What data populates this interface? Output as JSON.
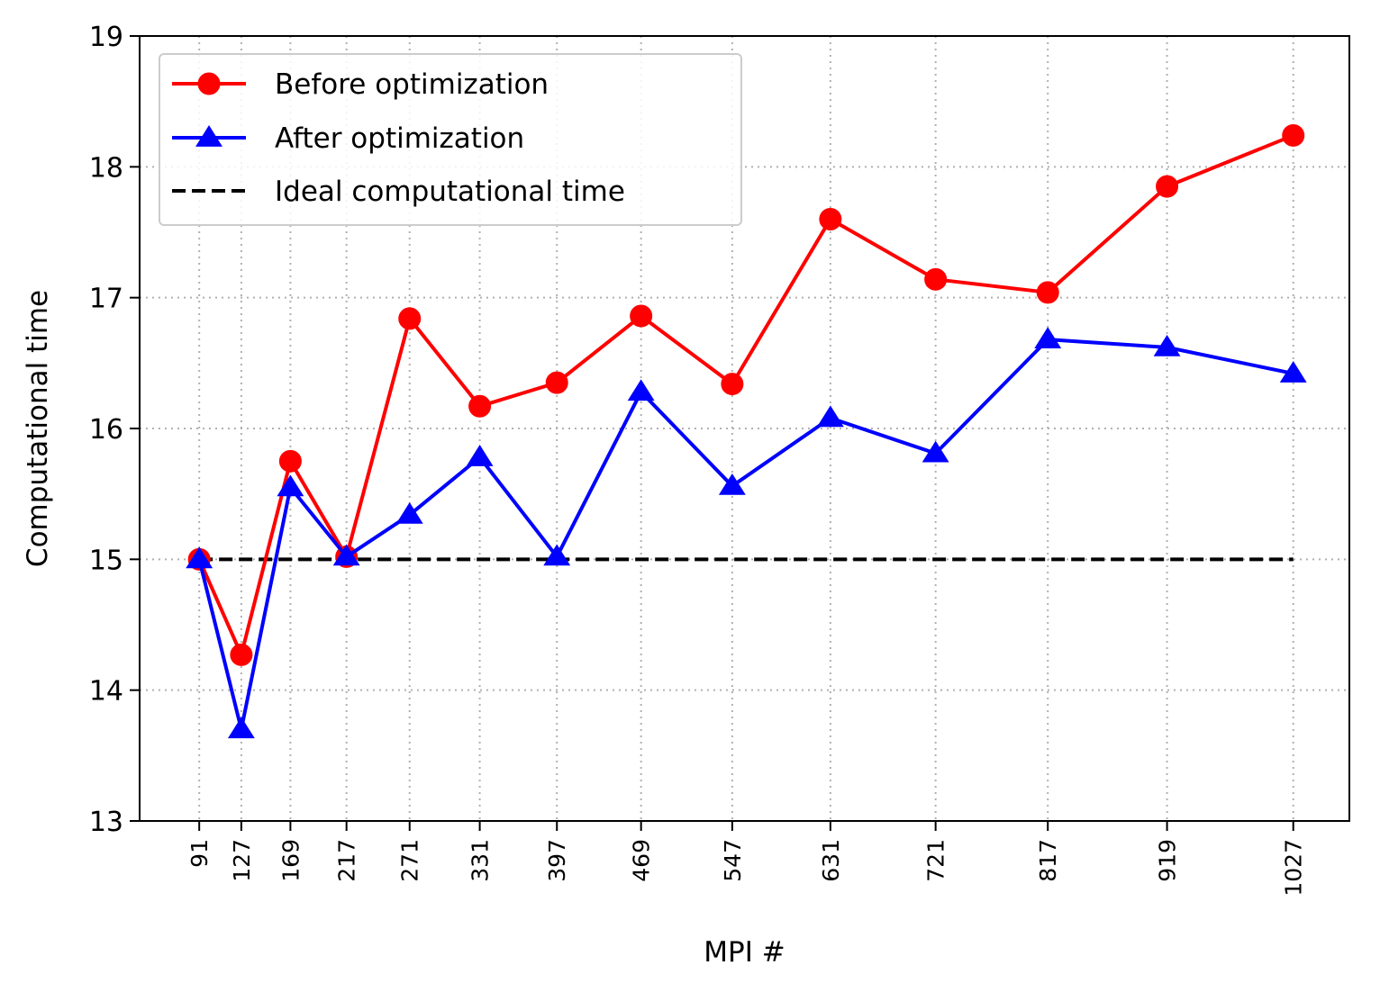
{
  "chart_data": {
    "type": "line",
    "title": "",
    "xlabel": "MPI #",
    "ylabel": "Computational time",
    "x_tick_labels": [
      "91",
      "127",
      "169",
      "217",
      "271",
      "331",
      "397",
      "469",
      "547",
      "631",
      "721",
      "817",
      "919",
      "1027"
    ],
    "x": [
      91,
      127,
      169,
      217,
      271,
      331,
      397,
      469,
      547,
      631,
      721,
      817,
      919,
      1027
    ],
    "xlim": [
      40,
      1075
    ],
    "ylim": [
      13,
      19
    ],
    "y_tick_labels": [
      "13",
      "14",
      "15",
      "16",
      "17",
      "18",
      "19"
    ],
    "y_ticks": [
      13,
      14,
      15,
      16,
      17,
      18,
      19
    ],
    "grid": true,
    "legend_position": "top-left",
    "series": [
      {
        "name": "Before optimization",
        "color": "#ff0000",
        "marker": "circle",
        "line_style": "solid",
        "values": [
          15.0,
          14.27,
          15.75,
          15.02,
          16.84,
          16.17,
          16.35,
          16.86,
          16.34,
          17.6,
          17.14,
          17.04,
          17.85,
          18.24
        ]
      },
      {
        "name": "After optimization",
        "color": "#0000ff",
        "marker": "triangle",
        "line_style": "solid",
        "values": [
          15.0,
          13.7,
          15.55,
          15.02,
          15.34,
          15.78,
          15.02,
          16.28,
          15.56,
          16.08,
          15.81,
          16.68,
          16.62,
          16.42
        ]
      },
      {
        "name": "Ideal computational time",
        "color": "#000000",
        "marker": "none",
        "line_style": "dashed",
        "values": [
          15,
          15,
          15,
          15,
          15,
          15,
          15,
          15,
          15,
          15,
          15,
          15,
          15,
          15
        ]
      }
    ]
  }
}
